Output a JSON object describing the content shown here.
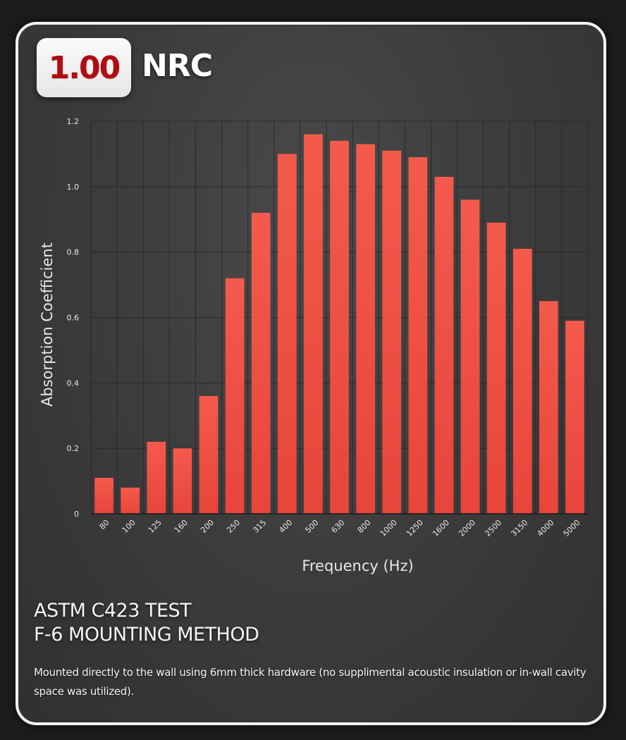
{
  "header": {
    "nrc_value": "1.00",
    "nrc_label": "NRC"
  },
  "test": {
    "title_line1": "ASTM C423 TEST",
    "title_line2": "F-6 MOUNTING METHOD",
    "description": "Mounted directly to the wall using 6mm thick hardware (no supplimental acoustic insulation or in-wall cavity space was utilized)."
  },
  "colors": {
    "bar": "#e8453b",
    "bar_top": "#f45a4c",
    "nrc_value": "#b10b10",
    "axis_text": "#e6e6e6",
    "grid": "#2a2a2a"
  },
  "chart_data": {
    "type": "bar",
    "title": "",
    "xlabel": "Frequency (Hz)",
    "ylabel": "Absorption Coefficient",
    "categories": [
      "80",
      "100",
      "125",
      "160",
      "200",
      "250",
      "315",
      "400",
      "500",
      "630",
      "800",
      "1000",
      "1250",
      "1600",
      "2000",
      "2500",
      "3150",
      "4000",
      "5000"
    ],
    "values": [
      0.11,
      0.08,
      0.22,
      0.2,
      0.36,
      0.72,
      0.92,
      1.1,
      1.16,
      1.14,
      1.13,
      1.11,
      1.09,
      1.03,
      0.96,
      0.89,
      0.81,
      0.65,
      0.59
    ],
    "yticks": [
      "0",
      "0.2",
      "0.4",
      "0.6",
      "0.8",
      "1.0",
      "1.2"
    ],
    "ylim": [
      0,
      1.2
    ],
    "grid": true,
    "legend": "none"
  }
}
